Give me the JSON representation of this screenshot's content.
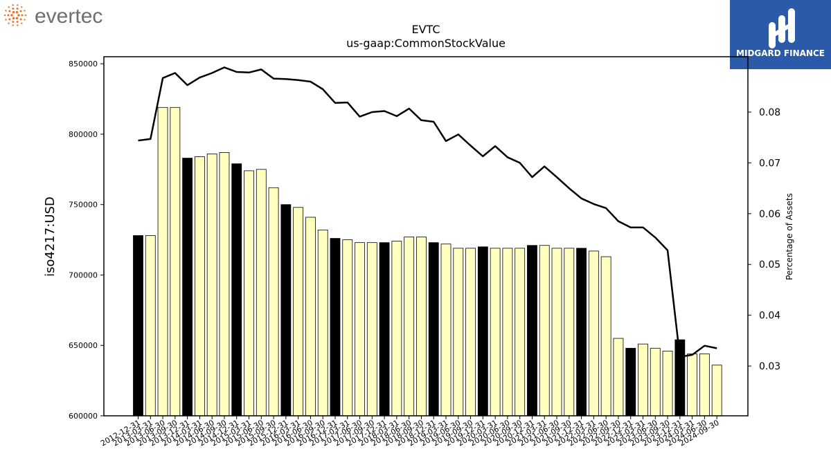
{
  "branding": {
    "left_logo_text": "evertec",
    "right_logo_text": "MIDGARD FINANCE",
    "brand_orange": "#e8762c",
    "brand_grey": "#6d6e71",
    "brand_blue": "#2b5aa8"
  },
  "chart_data": {
    "type": "bar",
    "title": "EVTC",
    "subtitle": "us-gaap:CommonStockValue",
    "ylabel": "iso4217:USD",
    "y2label": "Percentage of Assets",
    "ylim": [
      600000,
      855000
    ],
    "y2lim": [
      0.0202,
      0.0909
    ],
    "yticks": [
      "600000",
      "650000",
      "700000",
      "750000",
      "800000",
      "850000"
    ],
    "y2ticks": [
      "0.03",
      "0.04",
      "0.05",
      "0.06",
      "0.07",
      "0.08"
    ],
    "grid": false,
    "bar_colors": {
      "annual": "#000000",
      "quarter": "#ffffc0"
    },
    "line_color": "#000000",
    "categories": [
      "2012-12-31",
      "2013-03-31",
      "2013-06-30",
      "2013-09-30",
      "2013-12-31",
      "2014-03-31",
      "2014-06-30",
      "2014-09-30",
      "2014-12-31",
      "2015-03-31",
      "2015-06-30",
      "2015-09-30",
      "2015-12-31",
      "2016-03-31",
      "2016-06-30",
      "2016-09-30",
      "2016-12-31",
      "2017-03-31",
      "2017-06-30",
      "2017-09-30",
      "2017-12-31",
      "2018-03-31",
      "2018-06-30",
      "2018-09-30",
      "2018-12-31",
      "2019-03-31",
      "2019-06-30",
      "2019-09-30",
      "2019-12-31",
      "2020-03-31",
      "2020-06-30",
      "2020-09-30",
      "2020-12-31",
      "2021-03-31",
      "2021-06-30",
      "2021-09-30",
      "2021-12-31",
      "2022-03-31",
      "2022-06-30",
      "2022-09-30",
      "2022-12-31",
      "2023-03-31",
      "2023-06-30",
      "2023-09-30",
      "2023-12-31",
      "2024-03-31",
      "2024-06-30",
      "2024-09-30"
    ],
    "annual_flags": [
      1,
      0,
      0,
      0,
      1,
      0,
      0,
      0,
      1,
      0,
      0,
      0,
      1,
      0,
      0,
      0,
      1,
      0,
      0,
      0,
      1,
      0,
      0,
      0,
      1,
      0,
      0,
      0,
      1,
      0,
      0,
      0,
      1,
      0,
      0,
      0,
      1,
      0,
      0,
      0,
      1,
      0,
      0,
      0,
      1,
      0,
      0,
      0
    ],
    "series": [
      {
        "kind": "bar",
        "values": [
          728000,
          728000,
          819000,
          819000,
          783000,
          784000,
          786000,
          787000,
          779000,
          774000,
          775000,
          762000,
          750000,
          748000,
          741000,
          732000,
          726000,
          725000,
          723000,
          723000,
          723000,
          724000,
          727000,
          727000,
          723000,
          722000,
          719000,
          719000,
          720000,
          719000,
          719000,
          719000,
          721000,
          721000,
          719000,
          719000,
          719000,
          717000,
          713000,
          655000,
          648000,
          651000,
          648000,
          646000,
          654000,
          644000,
          644000,
          636000
        ]
      },
      {
        "kind": "line",
        "axis": "right",
        "values": [
          0.0744,
          0.0747,
          0.0867,
          0.0877,
          0.0853,
          0.0868,
          0.0877,
          0.0888,
          0.0879,
          0.0878,
          0.0884,
          0.0866,
          0.0865,
          0.0863,
          0.086,
          0.0845,
          0.0818,
          0.0819,
          0.0791,
          0.08,
          0.0802,
          0.0792,
          0.0807,
          0.0784,
          0.0781,
          0.0743,
          0.0756,
          0.0734,
          0.0713,
          0.0733,
          0.0711,
          0.07,
          0.0672,
          0.0693,
          0.0672,
          0.065,
          0.063,
          0.0619,
          0.0611,
          0.0585,
          0.0573,
          0.0573,
          0.0553,
          0.0528,
          0.0318,
          0.0322,
          0.034,
          0.0335
        ]
      }
    ]
  }
}
